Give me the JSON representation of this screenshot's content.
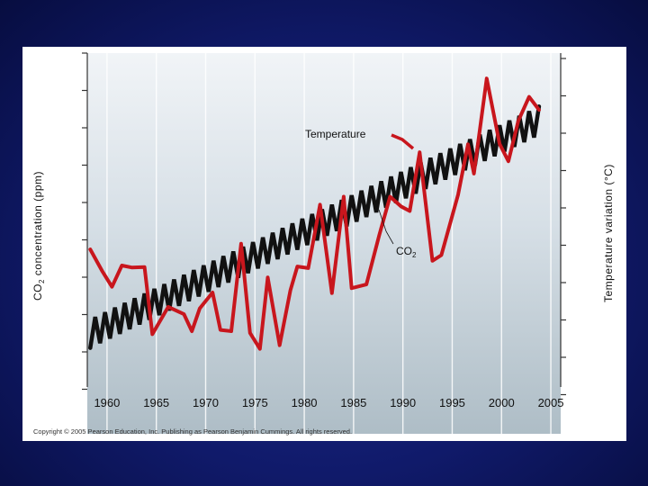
{
  "chart_data": {
    "type": "line",
    "title": "",
    "xlabel": "",
    "ylabel_left": "CO2 concentration (ppm)",
    "ylabel_left_main": "CO",
    "ylabel_left_sub": "2",
    "ylabel_left_rest": " concentration (ppm)",
    "ylabel_right": "Temperature variation (°C)",
    "xlim": [
      1958,
      2006
    ],
    "x_ticks": [
      1960,
      1965,
      1970,
      1975,
      1980,
      1985,
      1990,
      1995,
      2000,
      2005
    ],
    "x_tick_labels": [
      "1960",
      "1965",
      "1970",
      "1975",
      "1980",
      "1985",
      "1990",
      "1995",
      "2000",
      "2005"
    ],
    "y_left_index_range": [
      0,
      100
    ],
    "y_right_index_range": [
      0,
      100
    ],
    "series": [
      {
        "name": "Temperature",
        "color": "#c8161d",
        "x": [
          1958.3,
          1959.5,
          1960.5,
          1961.5,
          1962.5,
          1963.8,
          1964.6,
          1966.2,
          1967.8,
          1968.6,
          1969.4,
          1970.7,
          1971.5,
          1972.6,
          1973.6,
          1974.5,
          1975.5,
          1976.3,
          1977.5,
          1978.6,
          1979.3,
          1980.4,
          1981.6,
          1982.8,
          1984.0,
          1984.8,
          1986.3,
          1987.6,
          1988.7,
          1989.8,
          1990.7,
          1991.7,
          1993.0,
          1993.9,
          1995.6,
          1996.6,
          1997.2,
          1998.5,
          1999.8,
          2000.7,
          2001.7,
          2002.8,
          2003.8
        ],
        "y": [
          41.2,
          34.8,
          30.0,
          36.4,
          35.8,
          35.9,
          15.8,
          24.0,
          21.8,
          16.7,
          23.5,
          28.3,
          17.1,
          16.7,
          42.9,
          16.2,
          11.4,
          32.8,
          12.5,
          29.0,
          36.1,
          35.6,
          54.6,
          28.1,
          57.0,
          29.6,
          30.7,
          45.5,
          57.0,
          54.1,
          52.7,
          70.3,
          37.8,
          39.5,
          57.6,
          72.7,
          63.9,
          92.4,
          72.8,
          67.6,
          79.7,
          86.9,
          83.0
        ]
      },
      {
        "name": "CO2",
        "color": "#111111",
        "trend_x": [
          1958.3,
          2004
        ],
        "trend_y": [
          16.0,
          80.0
        ],
        "seasonal_amplitude": 4.3,
        "seasonal_period_years": 1
      }
    ],
    "annotations": [
      {
        "text": "Temperature",
        "x": 1986.4,
        "y": 74.0,
        "points_to": "Temperature"
      },
      {
        "text": "CO",
        "sub": "2",
        "x": 1993.0,
        "y": 38.0,
        "points_to": "CO2"
      }
    ],
    "grid": true,
    "background": "gradient light blue-gray",
    "copyright": "Copyright © 2005 Pearson Education, Inc. Publishing as Pearson Benjamin Cummings. All rights reserved."
  }
}
